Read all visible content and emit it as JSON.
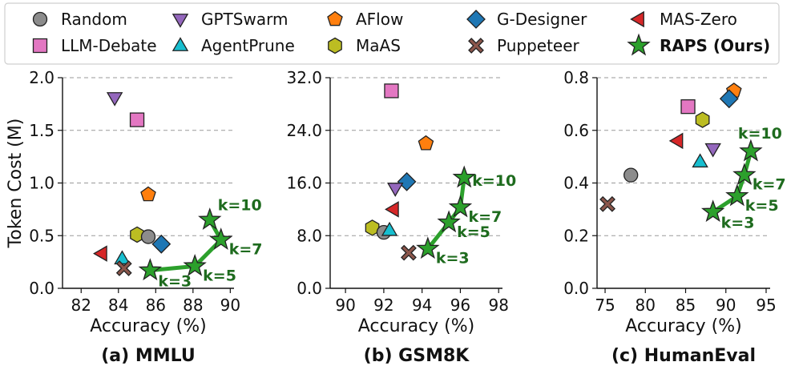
{
  "legend": [
    {
      "key": "random",
      "label": "Random",
      "marker": "circle",
      "color": "#8c8c8c",
      "bold": false
    },
    {
      "key": "llmdebate",
      "label": "LLM-Debate",
      "marker": "square",
      "color": "#e377c2",
      "bold": false
    },
    {
      "key": "gptswarm",
      "label": "GPTSwarm",
      "marker": "triangle-down",
      "color": "#9467bd",
      "bold": false
    },
    {
      "key": "agentprune",
      "label": "AgentPrune",
      "marker": "triangle-up",
      "color": "#17becf",
      "bold": false
    },
    {
      "key": "aflow",
      "label": "AFlow",
      "marker": "pentagon",
      "color": "#ff7f0e",
      "bold": false
    },
    {
      "key": "maas",
      "label": "MaAS",
      "marker": "hexagon",
      "color": "#bcbd22",
      "bold": false
    },
    {
      "key": "gdesigner",
      "label": "G-Designer",
      "marker": "diamond",
      "color": "#1f77b4",
      "bold": false
    },
    {
      "key": "puppeteer",
      "label": "Puppeteer",
      "marker": "x",
      "color": "#8c564b",
      "bold": false
    },
    {
      "key": "maszero",
      "label": "MAS-Zero",
      "marker": "triangle-left",
      "color": "#d62728",
      "bold": false
    },
    {
      "key": "raps",
      "label": "RAPS (Ours)",
      "marker": "star",
      "color": "#2ca02c",
      "bold": true
    }
  ],
  "chart_data": [
    {
      "type": "scatter",
      "title": "(a) MMLU",
      "xlabel": "Accuracy (%)",
      "ylabel": "Token Cost (M)",
      "xlim": [
        81,
        90.2
      ],
      "ylim": [
        0,
        2.0
      ],
      "xticks": [
        82,
        84,
        86,
        88,
        90
      ],
      "xtick_labels": [
        "82",
        "84",
        "86",
        "88",
        "90"
      ],
      "yticks": [
        0,
        0.5,
        1.0,
        1.5,
        2.0
      ],
      "ytick_labels": [
        "0.0",
        "0.5",
        "1.0",
        "1.5",
        "2.0"
      ],
      "grid": true,
      "points": [
        {
          "method": "gptswarm",
          "x": 83.8,
          "y": 1.81
        },
        {
          "method": "llmdebate",
          "x": 85.0,
          "y": 1.6
        },
        {
          "method": "aflow",
          "x": 85.6,
          "y": 0.89
        },
        {
          "method": "maas",
          "x": 85.0,
          "y": 0.51
        },
        {
          "method": "random",
          "x": 85.6,
          "y": 0.49
        },
        {
          "method": "gdesigner",
          "x": 86.3,
          "y": 0.42
        },
        {
          "method": "maszero",
          "x": 83.1,
          "y": 0.33
        },
        {
          "method": "agentprune",
          "x": 84.2,
          "y": 0.28
        },
        {
          "method": "puppeteer",
          "x": 84.3,
          "y": 0.19
        }
      ],
      "raps": [
        {
          "x": 85.7,
          "y": 0.17,
          "label": "k=3"
        },
        {
          "x": 88.1,
          "y": 0.21,
          "label": "k=5"
        },
        {
          "x": 89.5,
          "y": 0.46,
          "label": "k=7"
        },
        {
          "x": 88.9,
          "y": 0.65,
          "label": "k=10"
        }
      ]
    },
    {
      "type": "scatter",
      "title": "(b) GSM8K",
      "xlabel": "Accuracy (%)",
      "ylabel": "",
      "xlim": [
        89.2,
        98.2
      ],
      "ylim": [
        0,
        32.0
      ],
      "xticks": [
        90,
        92,
        94,
        96,
        98
      ],
      "xtick_labels": [
        "90",
        "92",
        "94",
        "96",
        "98"
      ],
      "yticks": [
        0,
        8,
        16,
        24,
        32
      ],
      "ytick_labels": [
        "0.0",
        "8.0",
        "16.0",
        "24.0",
        "32.0"
      ],
      "grid": true,
      "points": [
        {
          "method": "llmdebate",
          "x": 92.4,
          "y": 30.0
        },
        {
          "method": "aflow",
          "x": 94.2,
          "y": 22.0
        },
        {
          "method": "gdesigner",
          "x": 93.2,
          "y": 16.2
        },
        {
          "method": "gptswarm",
          "x": 92.6,
          "y": 15.2
        },
        {
          "method": "maszero",
          "x": 92.5,
          "y": 12.0
        },
        {
          "method": "maas",
          "x": 91.4,
          "y": 9.2
        },
        {
          "method": "random",
          "x": 92.0,
          "y": 8.5
        },
        {
          "method": "agentprune",
          "x": 92.3,
          "y": 8.8
        },
        {
          "method": "puppeteer",
          "x": 93.3,
          "y": 5.4
        }
      ],
      "raps": [
        {
          "x": 94.3,
          "y": 6.0,
          "label": "k=3"
        },
        {
          "x": 95.4,
          "y": 10.0,
          "label": "k=5"
        },
        {
          "x": 96.0,
          "y": 12.3,
          "label": "k=7"
        },
        {
          "x": 96.2,
          "y": 16.8,
          "label": "k=10"
        }
      ]
    },
    {
      "type": "scatter",
      "title": "(c) HumanEval",
      "xlabel": "Accuracy (%)",
      "ylabel": "",
      "xlim": [
        74,
        95.5
      ],
      "ylim": [
        0,
        0.8
      ],
      "xticks": [
        75,
        80,
        85,
        90,
        95
      ],
      "xtick_labels": [
        "75",
        "80",
        "85",
        "90",
        "95"
      ],
      "yticks": [
        0,
        0.2,
        0.4,
        0.6,
        0.8
      ],
      "ytick_labels": [
        "0.0",
        "0.2",
        "0.4",
        "0.6",
        "0.8"
      ],
      "grid": true,
      "points": [
        {
          "method": "aflow",
          "x": 91.0,
          "y": 0.75
        },
        {
          "method": "gdesigner",
          "x": 90.4,
          "y": 0.72
        },
        {
          "method": "llmdebate",
          "x": 85.3,
          "y": 0.69
        },
        {
          "method": "maas",
          "x": 87.1,
          "y": 0.64
        },
        {
          "method": "maszero",
          "x": 84.0,
          "y": 0.56
        },
        {
          "method": "gptswarm",
          "x": 88.4,
          "y": 0.53
        },
        {
          "method": "agentprune",
          "x": 86.8,
          "y": 0.48
        },
        {
          "method": "random",
          "x": 78.2,
          "y": 0.43
        },
        {
          "method": "puppeteer",
          "x": 75.3,
          "y": 0.32
        }
      ],
      "raps": [
        {
          "x": 88.4,
          "y": 0.29,
          "label": "k=3"
        },
        {
          "x": 91.4,
          "y": 0.35,
          "label": "k=5"
        },
        {
          "x": 92.3,
          "y": 0.43,
          "label": "k=7"
        },
        {
          "x": 93.1,
          "y": 0.52,
          "label": "k=10"
        }
      ]
    }
  ]
}
